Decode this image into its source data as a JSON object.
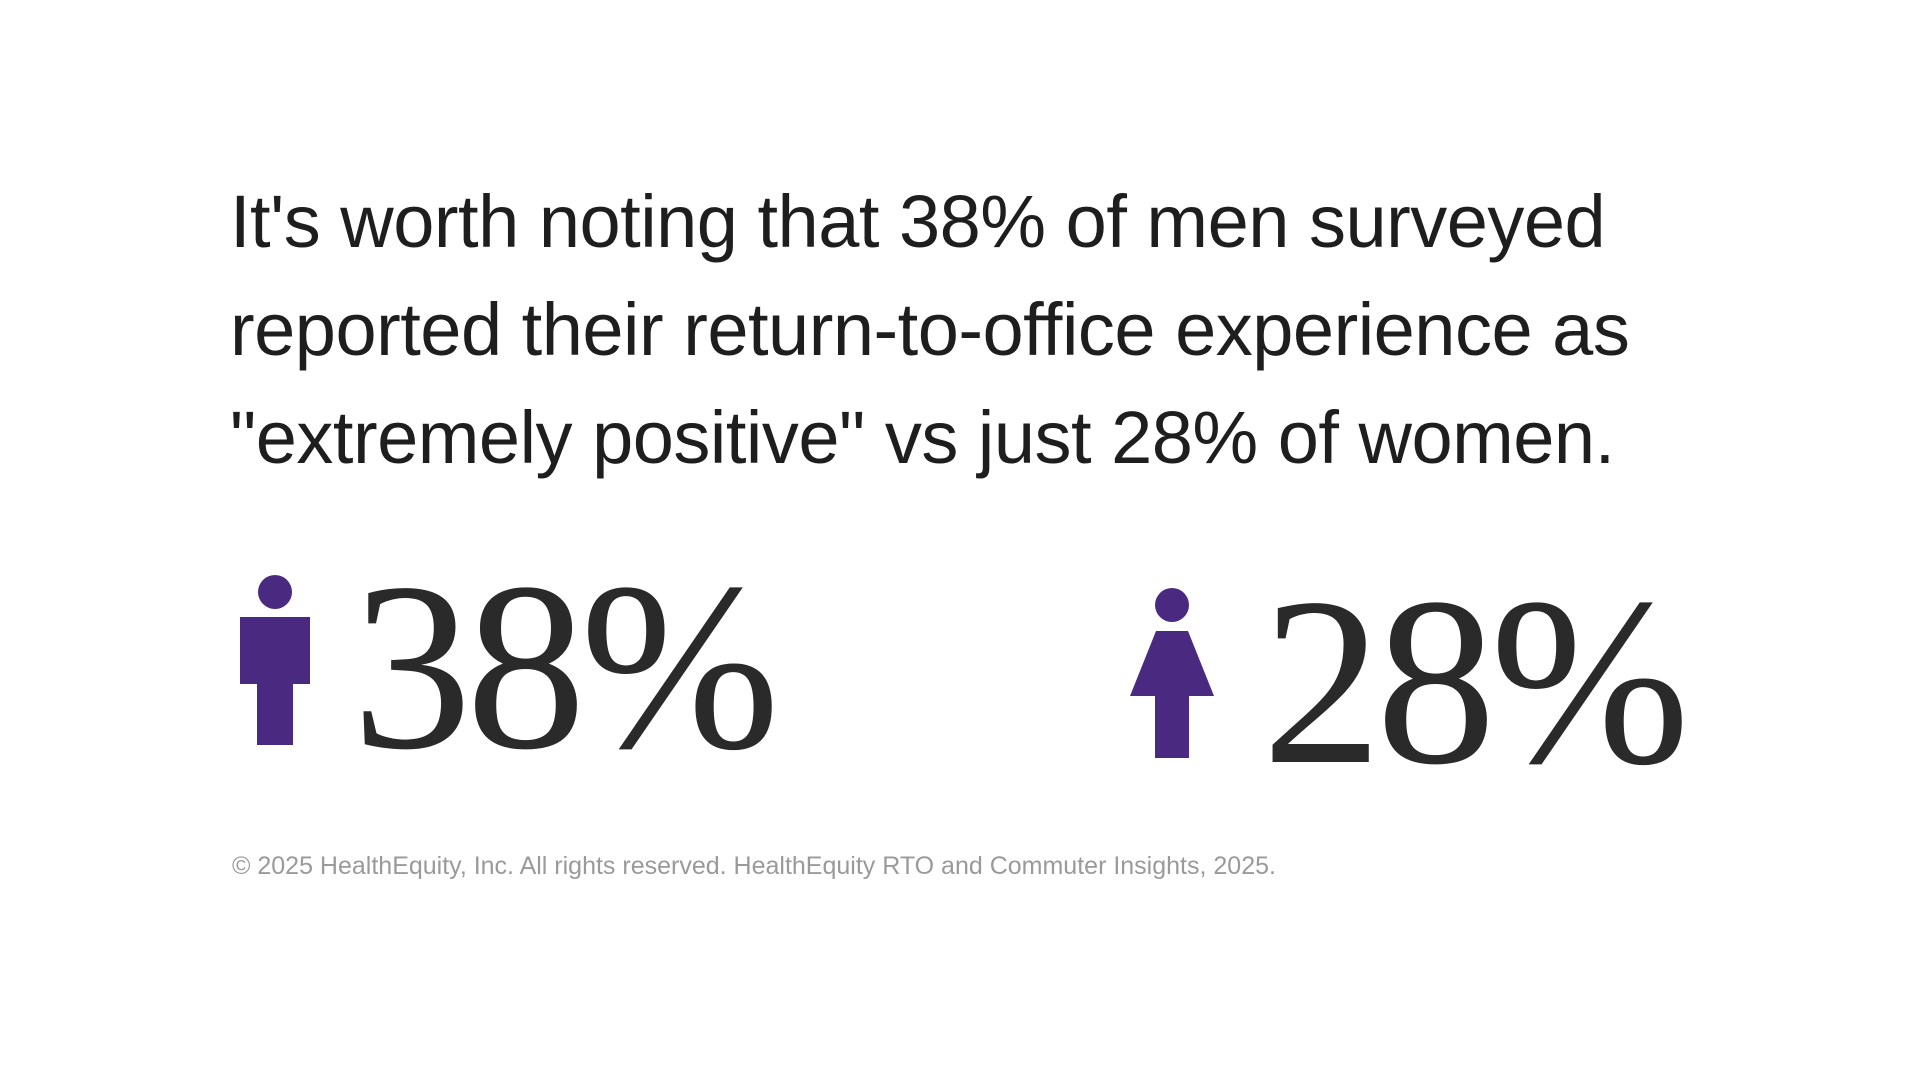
{
  "headline": "It's worth noting that 38% of men surveyed reported their return-to-office experience as \"extremely positive\" vs just 28% of women.",
  "stats": [
    {
      "group_icon": "man-icon",
      "value": "38%",
      "fraction": 0.38,
      "icon_color": "#4a2a80"
    },
    {
      "group_icon": "woman-icon",
      "value": "28%",
      "fraction": 0.28,
      "icon_color": "#4a2a80"
    }
  ],
  "footer": "© 2025 HealthEquity, Inc. All rights reserved. HealthEquity RTO and Commuter Insights, 2025.",
  "colors": {
    "text": "#1e1e1e",
    "accent_purple": "#4a2a80",
    "footer_text": "#9a9a9a",
    "background": "#ffffff"
  }
}
